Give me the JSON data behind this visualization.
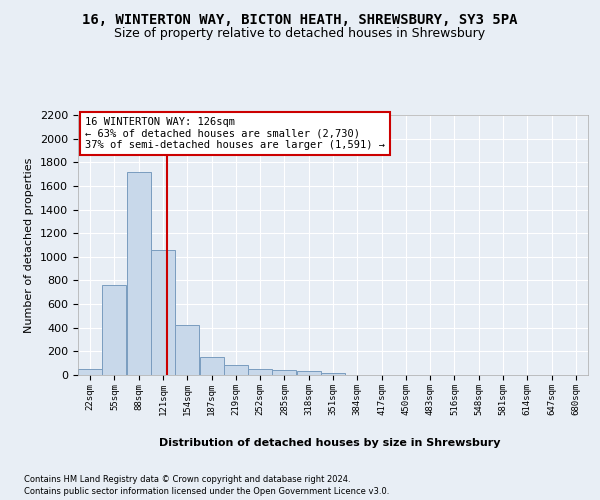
{
  "title_line1": "16, WINTERTON WAY, BICTON HEATH, SHREWSBURY, SY3 5PA",
  "title_line2": "Size of property relative to detached houses in Shrewsbury",
  "xlabel": "Distribution of detached houses by size in Shrewsbury",
  "ylabel": "Number of detached properties",
  "footer_line1": "Contains HM Land Registry data © Crown copyright and database right 2024.",
  "footer_line2": "Contains public sector information licensed under the Open Government Licence v3.0.",
  "annotation_line1": "16 WINTERTON WAY: 126sqm",
  "annotation_line2": "← 63% of detached houses are smaller (2,730)",
  "annotation_line3": "37% of semi-detached houses are larger (1,591) →",
  "bar_color": "#c8d8ea",
  "bar_edge_color": "#7a9cbf",
  "vline_color": "#cc0000",
  "vline_x": 126,
  "categories": [
    "22sqm",
    "55sqm",
    "88sqm",
    "121sqm",
    "154sqm",
    "187sqm",
    "219sqm",
    "252sqm",
    "285sqm",
    "318sqm",
    "351sqm",
    "384sqm",
    "417sqm",
    "450sqm",
    "483sqm",
    "516sqm",
    "548sqm",
    "581sqm",
    "614sqm",
    "647sqm",
    "680sqm"
  ],
  "bin_edges": [
    5.5,
    38.5,
    71.5,
    104.5,
    137.5,
    170.5,
    203.5,
    236.5,
    269.5,
    302.5,
    335.5,
    368.5,
    401.5,
    434.5,
    467.5,
    500.5,
    533.5,
    566.5,
    599.5,
    632.5,
    665.5,
    698.5
  ],
  "values": [
    55,
    760,
    1720,
    1060,
    420,
    150,
    85,
    50,
    40,
    30,
    20,
    0,
    0,
    0,
    0,
    0,
    0,
    0,
    0,
    0,
    0
  ],
  "ylim": [
    0,
    2200
  ],
  "yticks": [
    0,
    200,
    400,
    600,
    800,
    1000,
    1200,
    1400,
    1600,
    1800,
    2000,
    2200
  ],
  "background_color": "#e8eef5",
  "plot_bg_color": "#e8eef5",
  "grid_color": "#ffffff",
  "title_fontsize": 10,
  "subtitle_fontsize": 9,
  "ann_box_color": "#ffffff",
  "ann_border_color": "#cc0000"
}
